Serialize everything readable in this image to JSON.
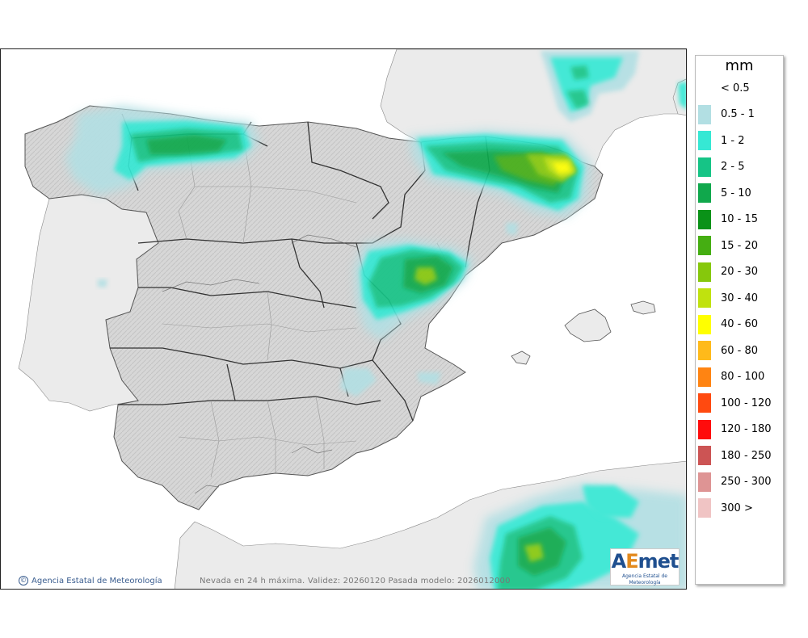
{
  "map": {
    "credit_text": "Agencia Estatal de Meteorología",
    "footer_note": "Nevada en 24 h máxima. Validez: 20260120 Pasada modelo: 2026012000",
    "logo_text_a": "A",
    "logo_text_b": "E",
    "logo_text_c": "met",
    "logo_subtext": "Agencia Estatal de Meteorología",
    "colors": {
      "sea": "#ffffff",
      "land": "#dcdcdc",
      "foreign_land": "#ebebeb",
      "border": "#333333"
    }
  },
  "legend": {
    "title": "mm",
    "items": [
      {
        "label": "< 0.5",
        "color": "#ffffff"
      },
      {
        "label": "0.5 - 1",
        "color": "#b2dfe3"
      },
      {
        "label": "1 - 2",
        "color": "#36e8d4"
      },
      {
        "label": "2 - 5",
        "color": "#16c486"
      },
      {
        "label": "5 - 10",
        "color": "#10a84c"
      },
      {
        "label": "10 - 15",
        "color": "#0a9218"
      },
      {
        "label": "15 - 20",
        "color": "#45ae12"
      },
      {
        "label": "20 - 30",
        "color": "#86c80c"
      },
      {
        "label": "30 - 40",
        "color": "#c0e20e"
      },
      {
        "label": "40 - 60",
        "color": "#ffff00"
      },
      {
        "label": "60 - 80",
        "color": "#ffba1a"
      },
      {
        "label": "80 - 100",
        "color": "#ff8412"
      },
      {
        "label": "100 - 120",
        "color": "#ff4a10"
      },
      {
        "label": "120 - 180",
        "color": "#ff0c0c"
      },
      {
        "label": "180 - 250",
        "color": "#cc5454"
      },
      {
        "label": "250 - 300",
        "color": "#de9494"
      },
      {
        "label": "300 >",
        "color": "#f0c4c4"
      }
    ]
  }
}
